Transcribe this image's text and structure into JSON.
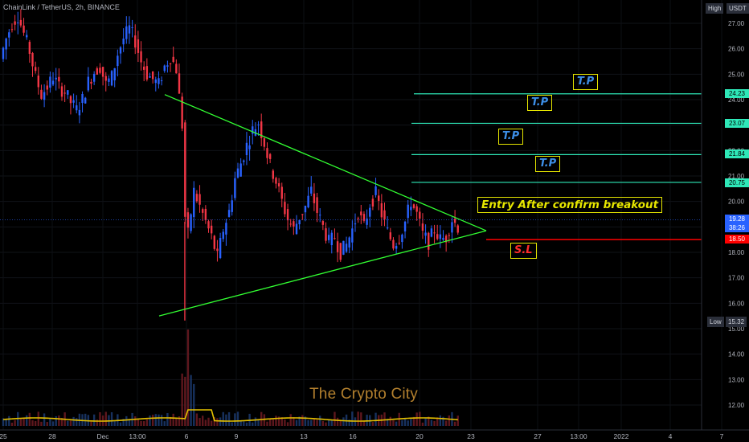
{
  "header": {
    "symbol": "ChainLink / TetherUS, 2h, BINANCE",
    "high_badge": "High",
    "currency_badge": "USDT"
  },
  "low_marker": {
    "label": "Low",
    "value": "15.32"
  },
  "annotations": {
    "take_profit": [
      "T.P",
      "T.P",
      "T.P",
      "T.P"
    ],
    "stop_loss": "S.L",
    "entry": "Entry After confirm breakout"
  },
  "watermark": "The Crypto City",
  "price_tags": {
    "tp4": "24.23",
    "tp3": "23.07",
    "tp2": "21.84",
    "tp1": "20.75",
    "last": "19.28",
    "countdown": "38:26",
    "stop": "18.50"
  },
  "colors": {
    "background": "#000000",
    "up_candle": "#2962ff",
    "down_candle": "#f23645",
    "triangle": "#32ff32",
    "tp_lines": "#2ee8b8",
    "stop_line": "#ff0000",
    "annotation_border": "#e6e600",
    "volume_ma": "#e6c200"
  },
  "chart_data": {
    "type": "candlestick",
    "title": "ChainLink / TetherUS, 2h, BINANCE",
    "y_axis": {
      "ticks": [
        "27.00",
        "26.00",
        "25.00",
        "24.00",
        "23.00",
        "22.00",
        "21.00",
        "20.00",
        "19.00",
        "18.00",
        "17.00",
        "16.00",
        "15.00",
        "14.00",
        "13.00",
        "12.00"
      ],
      "range": [
        11.5,
        27.5
      ],
      "side": "right"
    },
    "x_axis": {
      "ticks": [
        "25",
        "28",
        "Dec",
        "13:00",
        "6",
        "9",
        "13",
        "16",
        "20",
        "23",
        "27",
        "13:00",
        "2022",
        "4",
        "7"
      ]
    },
    "price_path": [
      [
        0,
        25.6
      ],
      [
        2,
        26.4
      ],
      [
        4,
        27.0
      ],
      [
        6,
        27.3
      ],
      [
        8,
        26.6
      ],
      [
        10,
        25.9
      ],
      [
        12,
        24.9
      ],
      [
        14,
        24.2
      ],
      [
        16,
        24.5
      ],
      [
        18,
        24.9
      ],
      [
        20,
        24.5
      ],
      [
        22,
        24.3
      ],
      [
        24,
        23.9
      ],
      [
        26,
        23.6
      ],
      [
        28,
        24.0
      ],
      [
        30,
        24.7
      ],
      [
        32,
        25.1
      ],
      [
        34,
        25.3
      ],
      [
        36,
        24.6
      ],
      [
        38,
        24.9
      ],
      [
        40,
        25.8
      ],
      [
        42,
        26.4
      ],
      [
        44,
        26.8
      ],
      [
        46,
        26.3
      ],
      [
        48,
        25.5
      ],
      [
        50,
        25.0
      ],
      [
        52,
        24.8
      ],
      [
        54,
        24.6
      ],
      [
        56,
        25.3
      ],
      [
        58,
        25.7
      ],
      [
        60,
        25.2
      ],
      [
        62,
        23.0
      ],
      [
        63,
        19.4
      ],
      [
        64,
        18.7
      ],
      [
        66,
        20.4
      ],
      [
        68,
        19.8
      ],
      [
        70,
        19.2
      ],
      [
        72,
        18.6
      ],
      [
        74,
        17.8
      ],
      [
        76,
        18.9
      ],
      [
        78,
        19.6
      ],
      [
        80,
        20.9
      ],
      [
        82,
        21.5
      ],
      [
        84,
        22.2
      ],
      [
        86,
        22.8
      ],
      [
        88,
        23.1
      ],
      [
        90,
        22.3
      ],
      [
        92,
        21.4
      ],
      [
        94,
        20.8
      ],
      [
        96,
        20.0
      ],
      [
        98,
        19.3
      ],
      [
        100,
        18.9
      ],
      [
        102,
        19.4
      ],
      [
        104,
        19.8
      ],
      [
        106,
        20.4
      ],
      [
        108,
        19.6
      ],
      [
        110,
        19.0
      ],
      [
        112,
        18.4
      ],
      [
        114,
        18.6
      ],
      [
        116,
        18.0
      ],
      [
        118,
        18.3
      ],
      [
        120,
        18.9
      ],
      [
        122,
        19.6
      ],
      [
        124,
        19.0
      ],
      [
        126,
        19.9
      ],
      [
        128,
        20.3
      ],
      [
        130,
        19.5
      ],
      [
        132,
        18.8
      ],
      [
        134,
        18.3
      ],
      [
        136,
        18.6
      ],
      [
        138,
        19.2
      ],
      [
        140,
        20.0
      ],
      [
        142,
        19.5
      ],
      [
        144,
        18.7
      ],
      [
        146,
        18.4
      ],
      [
        148,
        18.9
      ],
      [
        150,
        18.5
      ],
      [
        152,
        18.6
      ],
      [
        154,
        19.3
      ],
      [
        156,
        19.0
      ]
    ],
    "volume_spike_index": 63,
    "triangle": {
      "upper": [
        [
          18,
          24.2
        ],
        [
          49,
          19.4
        ]
      ],
      "lower": [
        [
          16,
          15.5
        ],
        [
          49,
          18.8
        ]
      ]
    },
    "take_profit_levels": [
      20.75,
      21.84,
      23.07,
      24.23
    ],
    "stop_loss_level": 18.5,
    "last_price": 19.28,
    "low": 15.32
  }
}
